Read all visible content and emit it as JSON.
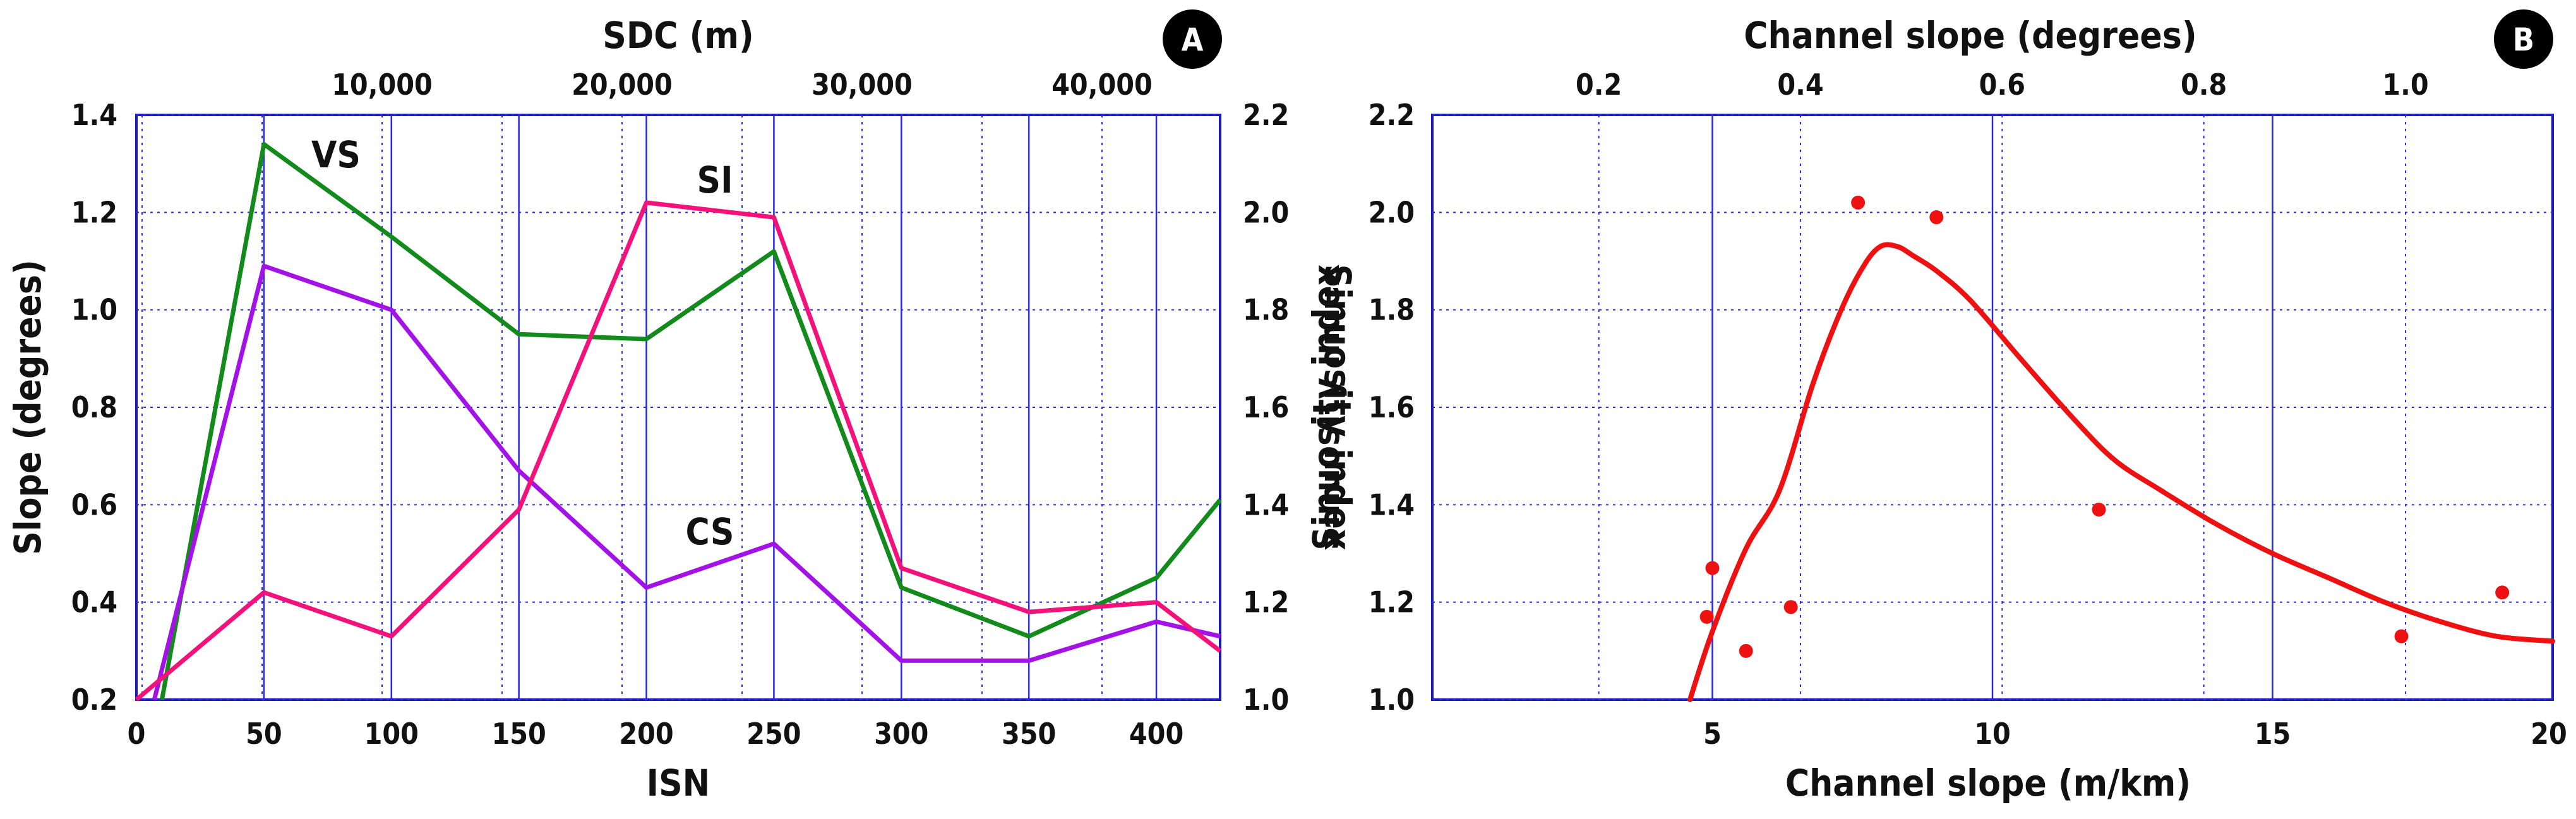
{
  "chart_data": [
    {
      "panel": "A",
      "type": "line",
      "xlabel": "ISN",
      "x2label": "SDC (m)",
      "ylabel": "Slope (degrees)",
      "y2label": "Sinuosity index",
      "xlim": [
        0,
        425
      ],
      "ylim": [
        0.2,
        1.4
      ],
      "y2lim": [
        1.0,
        2.2
      ],
      "xticks": [
        "0",
        "50",
        "100",
        "150",
        "200",
        "250",
        "300",
        "350",
        "400"
      ],
      "x2ticks": [
        "10,000",
        "20,000",
        "30,000",
        "40,000"
      ],
      "yticks": [
        "0.2",
        "0.4",
        "0.6",
        "0.8",
        "1.0",
        "1.2",
        "1.4"
      ],
      "y2ticks": [
        "1.0",
        "1.2",
        "1.4",
        "1.6",
        "1.8",
        "2.0",
        "2.2"
      ],
      "grid": true,
      "series": [
        {
          "name": "VS",
          "axis": "left",
          "color": "#138a1c",
          "x": [
            10,
            50,
            100,
            150,
            200,
            250,
            300,
            350,
            400,
            425
          ],
          "y": [
            0.2,
            1.34,
            1.15,
            0.95,
            0.94,
            1.12,
            0.43,
            0.33,
            0.45,
            0.61
          ]
        },
        {
          "name": "CS",
          "axis": "left",
          "color": "#a312e6",
          "x": [
            7,
            50,
            100,
            150,
            200,
            250,
            300,
            350,
            400,
            425
          ],
          "y": [
            0.2,
            1.09,
            1.0,
            0.67,
            0.43,
            0.52,
            0.28,
            0.28,
            0.36,
            0.33
          ]
        },
        {
          "name": "SI",
          "axis": "right",
          "color": "#f2127a",
          "x": [
            0,
            50,
            100,
            150,
            200,
            250,
            300,
            350,
            400,
            425
          ],
          "y": [
            1.0,
            1.22,
            1.13,
            1.39,
            2.02,
            1.99,
            1.27,
            1.18,
            1.2,
            1.1
          ]
        }
      ],
      "badge": "A"
    },
    {
      "panel": "B",
      "type": "scatter",
      "xlabel": "Channel slope  (m/km)",
      "x2label": "Channel slope (degrees)",
      "ylabel": "Sinuosity index",
      "xlim": [
        0,
        20
      ],
      "ylim": [
        1.0,
        2.2
      ],
      "x2lim": [
        0.0349,
        1.1459
      ],
      "xticks": [
        "5",
        "10",
        "15",
        "20"
      ],
      "x2ticks": [
        "0.2",
        "0.4",
        "0.6",
        "0.8",
        "1.0"
      ],
      "yticks": [
        "1.0",
        "1.2",
        "1.4",
        "1.6",
        "1.8",
        "2.0",
        "2.2"
      ],
      "grid": true,
      "points": {
        "color": "#ee1111",
        "x": [
          4.9,
          5.0,
          5.6,
          6.4,
          7.6,
          9.0,
          11.9,
          17.3,
          19.1
        ],
        "y": [
          1.17,
          1.27,
          1.1,
          1.19,
          2.02,
          1.99,
          1.39,
          1.13,
          1.22
        ]
      },
      "fit_curve": {
        "color": "#ee1111",
        "x": [
          4.6,
          5.0,
          5.6,
          6.2,
          6.8,
          7.3,
          7.7,
          8.0,
          8.3,
          8.6,
          9.0,
          9.6,
          10.5,
          11.5,
          12.2,
          13.0,
          14.0,
          15.0,
          16.0,
          17.0,
          18.0,
          19.0,
          20.0
        ],
        "y": [
          1.0,
          1.14,
          1.31,
          1.43,
          1.65,
          1.8,
          1.89,
          1.93,
          1.93,
          1.91,
          1.88,
          1.82,
          1.7,
          1.57,
          1.49,
          1.43,
          1.36,
          1.3,
          1.25,
          1.2,
          1.16,
          1.13,
          1.12
        ]
      },
      "badge": "B"
    }
  ]
}
